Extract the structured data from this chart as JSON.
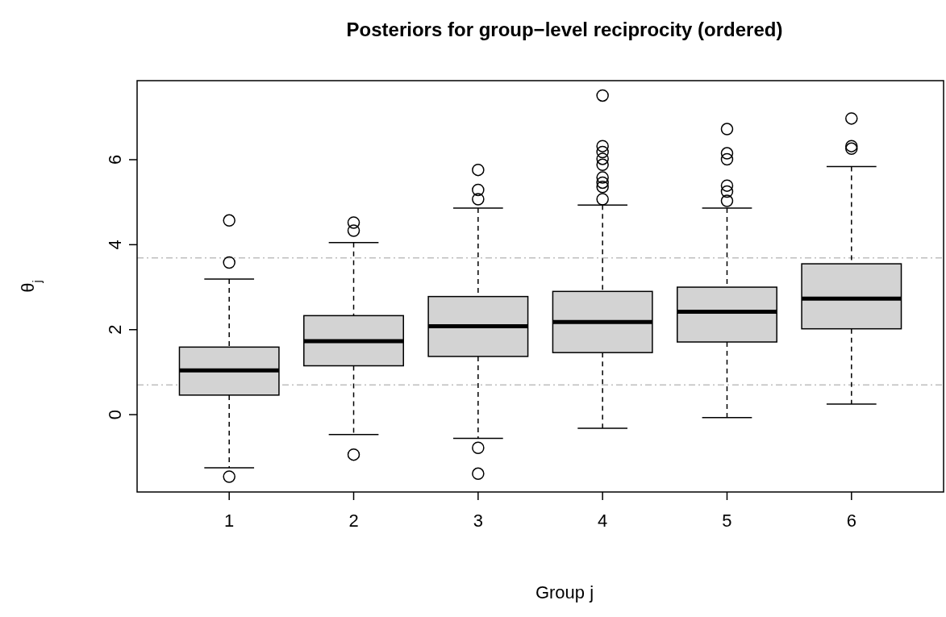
{
  "chart_data": {
    "type": "box",
    "title": "Posteriors for group−level reciprocity (ordered)",
    "xlabel": "Group j",
    "ylabel": "θ$_{j}$",
    "categories": [
      "1",
      "2",
      "3",
      "4",
      "5",
      "6"
    ],
    "ylim": [
      -1.82,
      7.86
    ],
    "yticks": [
      0,
      2,
      4,
      6
    ],
    "color": "#d3d3d3",
    "boxes": [
      {
        "low": -1.25,
        "q1": 0.46,
        "median": 1.04,
        "q3": 1.59,
        "high": 3.19,
        "outliers": [
          4.57,
          3.58,
          -1.46
        ]
      },
      {
        "low": -0.47,
        "q1": 1.15,
        "median": 1.73,
        "q3": 2.33,
        "high": 4.05,
        "outliers": [
          4.52,
          4.33,
          -0.94
        ]
      },
      {
        "low": -0.56,
        "q1": 1.37,
        "median": 2.08,
        "q3": 2.78,
        "high": 4.86,
        "outliers": [
          5.76,
          5.29,
          5.07,
          -0.78,
          -1.39
        ]
      },
      {
        "low": -0.32,
        "q1": 1.46,
        "median": 2.18,
        "q3": 2.9,
        "high": 4.93,
        "outliers": [
          7.51,
          6.32,
          6.18,
          6.02,
          5.88,
          5.58,
          5.46,
          5.36,
          5.07
        ]
      },
      {
        "low": -0.07,
        "q1": 1.71,
        "median": 2.42,
        "q3": 3.0,
        "high": 4.86,
        "outliers": [
          6.72,
          6.15,
          6.01,
          5.39,
          5.25,
          5.03
        ]
      },
      {
        "low": 0.25,
        "q1": 2.02,
        "median": 2.73,
        "q3": 3.55,
        "high": 5.84,
        "outliers": [
          6.97,
          6.32,
          6.26
        ]
      }
    ],
    "ref_lines": [
      {
        "axis": "y",
        "value": 3.69,
        "color": "#bebebe",
        "line_style": "dashdot"
      },
      {
        "axis": "y",
        "value": 0.7,
        "color": "#bebebe",
        "line_style": "dashdot"
      }
    ]
  }
}
